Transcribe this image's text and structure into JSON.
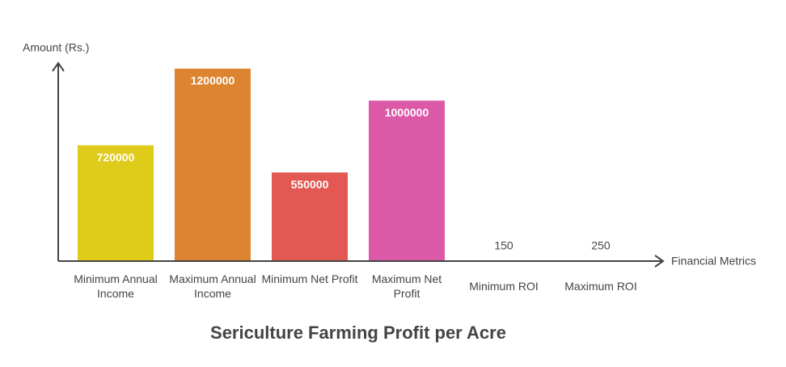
{
  "chart_data": {
    "type": "bar",
    "title": "Sericulture Farming Profit per Acre",
    "x_label": "Financial Metrics",
    "y_label": "Amount (Rs.)",
    "categories": [
      "Minimum Annual Income",
      "Maximum Annual Income",
      "Minimum Net Profit",
      "Maximum Net Profit",
      "Minimum ROI",
      "Maximum ROI"
    ],
    "values": [
      720000,
      1200000,
      550000,
      1000000,
      150,
      250
    ],
    "colors": [
      "#dfcb1a",
      "#dd8430",
      "#e35852",
      "#dc59a8",
      "#8ab0d8",
      "#9bd26d"
    ],
    "ylim": [
      0,
      1235000
    ]
  }
}
